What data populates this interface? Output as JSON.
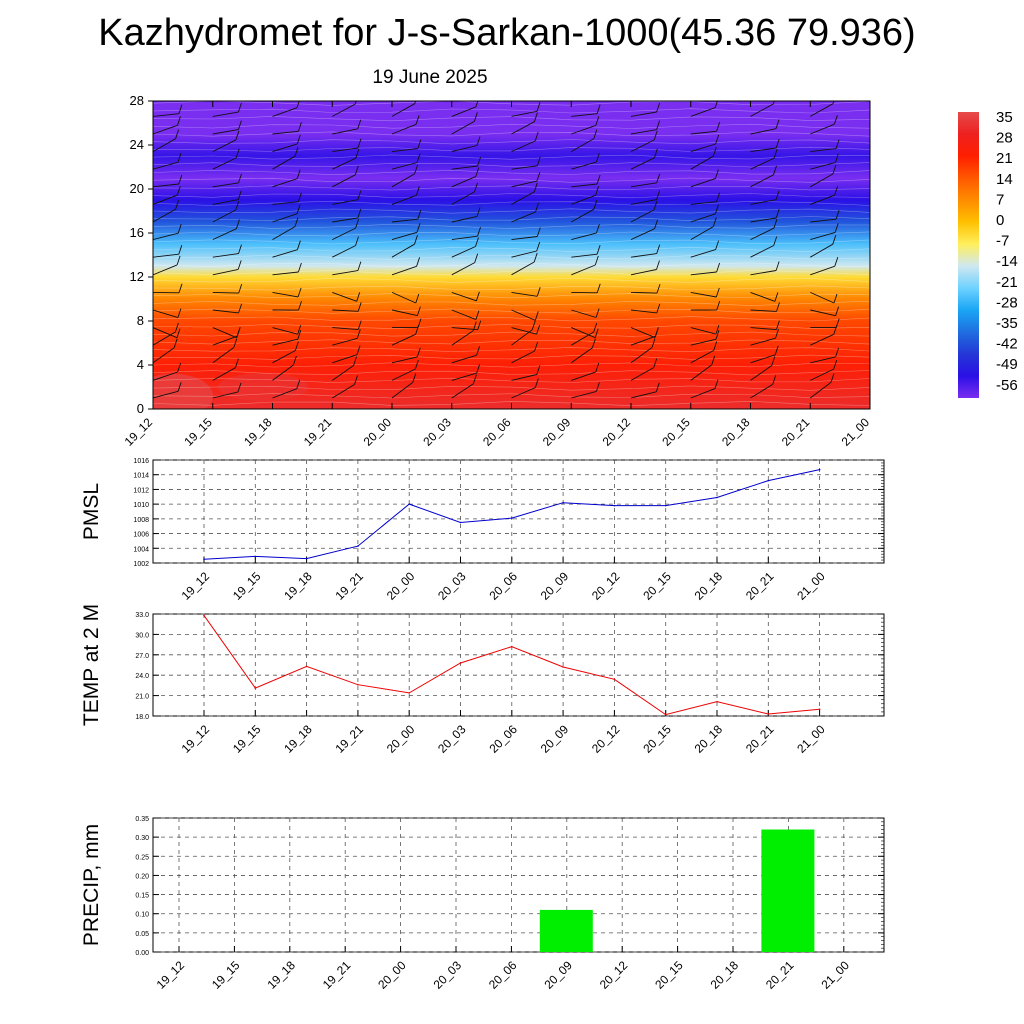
{
  "title": "Kazhydromet for J-s-Sarkan-1000(45.36 79.936)",
  "subtitle": "19 June 2025",
  "time_labels": [
    "19_12",
    "19_15",
    "19_18",
    "19_21",
    "20_00",
    "20_03",
    "20_06",
    "20_09",
    "20_12",
    "20_15",
    "20_18",
    "20_21",
    "21_00"
  ],
  "chart_data": [
    {
      "type": "heatmap",
      "title": "",
      "y_ticks": [
        0,
        4,
        8,
        12,
        16,
        20,
        24,
        28
      ],
      "ylim": [
        0,
        28
      ],
      "x": [
        "19_12",
        "19_15",
        "19_18",
        "19_21",
        "20_00",
        "20_03",
        "20_06",
        "20_09",
        "20_12",
        "20_15",
        "20_18",
        "20_21",
        "21_00"
      ],
      "colorbar": {
        "labels": [
          "35",
          "28",
          "21",
          "14",
          "7",
          "0",
          "-7",
          "-14",
          "-21",
          "-28",
          "-35",
          "-42",
          "-49",
          "-56"
        ],
        "colors": [
          "#e64b4b",
          "#ee2020",
          "#ff1f00",
          "#ff5800",
          "#ff8c00",
          "#ffc000",
          "#ffef5c",
          "#cfe8f0",
          "#6fd2ff",
          "#1aa6f5",
          "#1f6ee0",
          "#2437d6",
          "#2a10e6",
          "#7a2ef0"
        ]
      },
      "profile": [
        {
          "y": 0,
          "temp": 30
        },
        {
          "y": 4,
          "temp": 22
        },
        {
          "y": 8,
          "temp": 16
        },
        {
          "y": 10,
          "temp": 8
        },
        {
          "y": 12,
          "temp": -4
        },
        {
          "y": 13,
          "temp": -14
        },
        {
          "y": 15,
          "temp": -24
        },
        {
          "y": 17,
          "temp": -38
        },
        {
          "y": 19,
          "temp": -49
        },
        {
          "y": 21,
          "temp": -56
        },
        {
          "y": 23,
          "temp": -50
        },
        {
          "y": 25,
          "temp": -56
        },
        {
          "y": 28,
          "temp": -58
        }
      ]
    },
    {
      "type": "line",
      "ylabel": "PMSL",
      "ylim": [
        1002,
        1016
      ],
      "y_ticks": [
        "1002",
        "1004",
        "1006",
        "1008",
        "1010",
        "1012",
        "1014",
        "1016"
      ],
      "series": [
        {
          "color": "#0000cc",
          "values": [
            1002.5,
            1002.9,
            1002.6,
            1004.3,
            1010.0,
            1007.5,
            1008.1,
            1010.2,
            1009.8,
            1009.8,
            1010.9,
            1013.2,
            1014.7
          ]
        }
      ]
    },
    {
      "type": "line",
      "ylabel": "TEMP at 2 M",
      "ylim": [
        18.0,
        33.0
      ],
      "y_ticks": [
        "18.0",
        "21.0",
        "24.0",
        "27.0",
        "30.0",
        "33.0"
      ],
      "series": [
        {
          "color": "#ee0000",
          "values": [
            32.8,
            22.1,
            25.3,
            22.6,
            21.4,
            25.8,
            28.2,
            25.2,
            23.4,
            18.2,
            20.1,
            18.3,
            19.0
          ]
        }
      ]
    },
    {
      "type": "bar",
      "ylabel": "PRECIP, mm",
      "ylim": [
        0,
        0.35
      ],
      "y_ticks": [
        "0.00",
        "0.05",
        "0.10",
        "0.15",
        "0.20",
        "0.25",
        "0.30",
        "0.35"
      ],
      "bar_color": "#00ee00",
      "values": [
        0,
        0,
        0,
        0,
        0,
        0,
        0,
        0.11,
        0,
        0,
        0,
        0.32,
        0
      ]
    }
  ]
}
